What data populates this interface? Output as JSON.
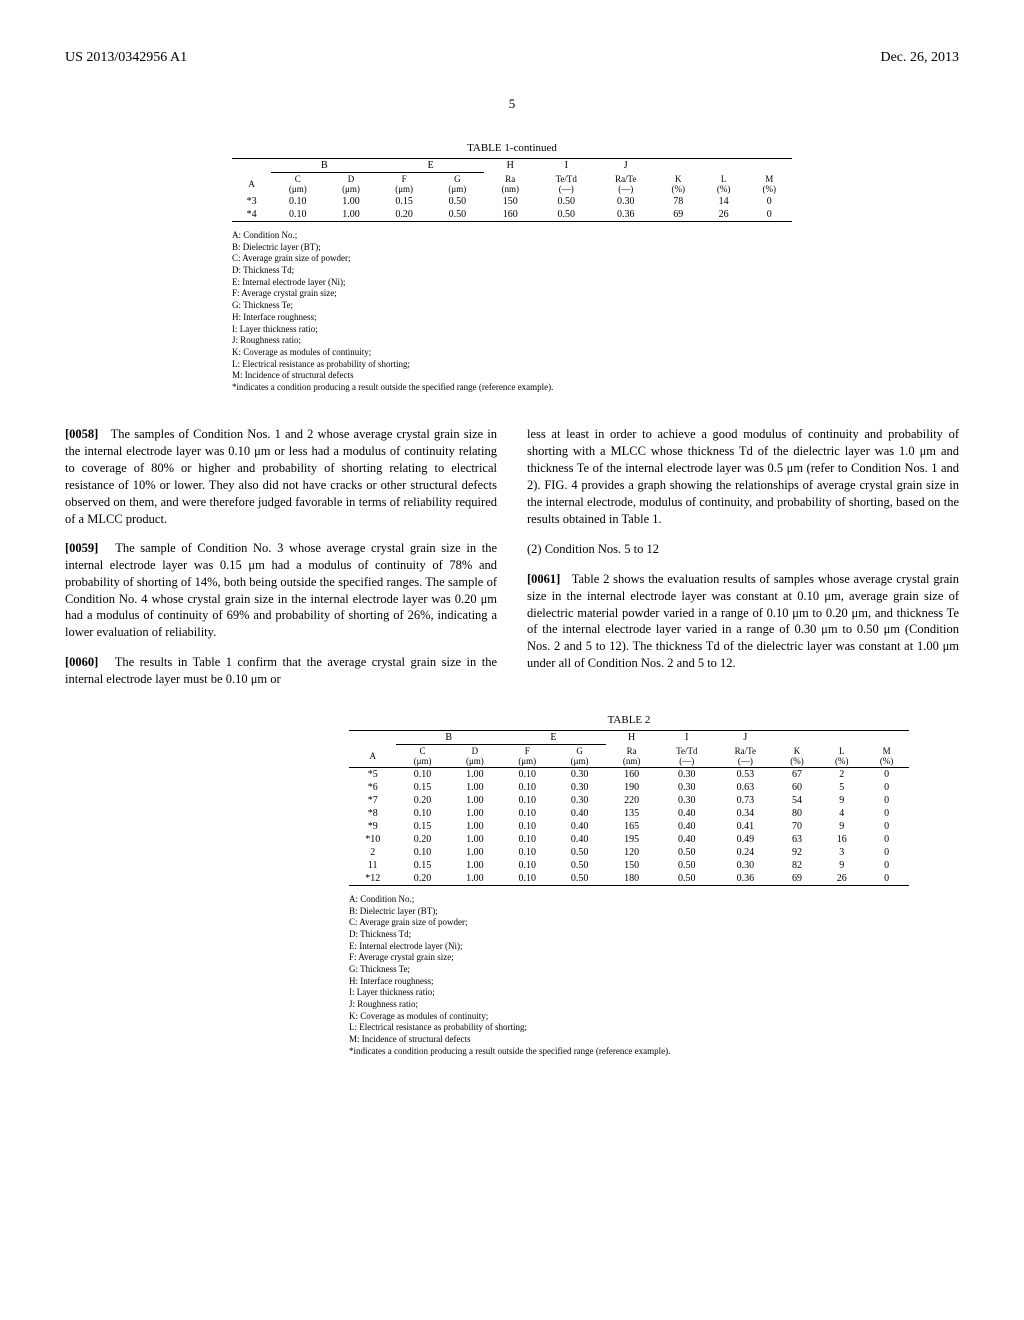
{
  "header": {
    "left": "US 2013/0342956 A1",
    "right": "Dec. 26, 2013"
  },
  "page_number": "5",
  "table1": {
    "title": "TABLE 1-continued",
    "group_labels": [
      "B",
      "E",
      "H",
      "I",
      "J"
    ],
    "cols": [
      "A",
      "C\n(μm)",
      "D\n(μm)",
      "F\n(μm)",
      "G\n(μm)",
      "Ra\n(nm)",
      "Te/Td\n(—)",
      "Ra/Te\n(—)",
      "K\n(%)",
      "L\n(%)",
      "M\n(%)"
    ],
    "rows": [
      [
        "*3",
        "0.10",
        "1.00",
        "0.15",
        "0.50",
        "150",
        "0.50",
        "0.30",
        "78",
        "14",
        "0"
      ],
      [
        "*4",
        "0.10",
        "1.00",
        "0.20",
        "0.50",
        "160",
        "0.50",
        "0.36",
        "69",
        "26",
        "0"
      ]
    ]
  },
  "legend": [
    "A: Condition No.;",
    "B: Dielectric layer (BT);",
    "C: Average grain size of powder;",
    "D: Thickness Td;",
    "E: Internal electrode layer (Ni);",
    "F: Average crystal grain size;",
    "G: Thickness Te;",
    "H: Interface roughness;",
    "I: Layer thickness ratio;",
    "J: Roughness ratio;",
    "K: Coverage as modules of continuity;",
    "L: Electrical resistance as probability of shorting;",
    "M: Incidence of structural defects",
    "*indicates a condition producing a result outside the specified range (reference example)."
  ],
  "paras": {
    "p0058_num": "[0058]",
    "p0058": "The samples of Condition Nos. 1 and 2 whose average crystal grain size in the internal electrode layer was 0.10 μm or less had a modulus of continuity relating to coverage of 80% or higher and probability of shorting relating to electrical resistance of 10% or lower. They also did not have cracks or other structural defects observed on them, and were therefore judged favorable in terms of reliability required of a MLCC product.",
    "p0059_num": "[0059]",
    "p0059": "The sample of Condition No. 3 whose average crystal grain size in the internal electrode layer was 0.15 μm had a modulus of continuity of 78% and probability of shorting of 14%, both being outside the specified ranges. The sample of Condition No. 4 whose crystal grain size in the internal electrode layer was 0.20 μm had a modulus of continuity of 69% and probability of shorting of 26%, indicating a lower evaluation of reliability.",
    "p0060_num": "[0060]",
    "p0060": "The results in Table 1 confirm that the average crystal grain size in the internal electrode layer must be 0.10 μm or",
    "p0060_cont": "less at least in order to achieve a good modulus of continuity and probability of shorting with a MLCC whose thickness Td of the dielectric layer was 1.0 μm and thickness Te of the internal electrode layer was 0.5 μm (refer to Condition Nos. 1 and 2). FIG. 4 provides a graph showing the relationships of average crystal grain size in the internal electrode, modulus of continuity, and probability of shorting, based on the results obtained in Table 1.",
    "subhead": "(2) Condition Nos. 5 to 12",
    "p0061_num": "[0061]",
    "p0061": "Table 2 shows the evaluation results of samples whose average crystal grain size in the internal electrode layer was constant at 0.10 μm, average grain size of dielectric material powder varied in a range of 0.10 μm to 0.20 μm, and thickness Te of the internal electrode layer varied in a range of 0.30 μm to 0.50 μm (Condition Nos. 2 and 5 to 12). The thickness Td of the dielectric layer was constant at 1.00 μm under all of Condition Nos. 2 and 5 to 12."
  },
  "table2": {
    "title": "TABLE 2",
    "rows": [
      [
        "*5",
        "0.10",
        "1.00",
        "0.10",
        "0.30",
        "160",
        "0.30",
        "0.53",
        "67",
        "2",
        "0"
      ],
      [
        "*6",
        "0.15",
        "1.00",
        "0.10",
        "0.30",
        "190",
        "0.30",
        "0.63",
        "60",
        "5",
        "0"
      ],
      [
        "*7",
        "0.20",
        "1.00",
        "0.10",
        "0.30",
        "220",
        "0.30",
        "0.73",
        "54",
        "9",
        "0"
      ],
      [
        "*8",
        "0.10",
        "1.00",
        "0.10",
        "0.40",
        "135",
        "0.40",
        "0.34",
        "80",
        "4",
        "0"
      ],
      [
        "*9",
        "0.15",
        "1.00",
        "0.10",
        "0.40",
        "165",
        "0.40",
        "0.41",
        "70",
        "9",
        "0"
      ],
      [
        "*10",
        "0.20",
        "1.00",
        "0.10",
        "0.40",
        "195",
        "0.40",
        "0.49",
        "63",
        "16",
        "0"
      ],
      [
        "2",
        "0.10",
        "1.00",
        "0.10",
        "0.50",
        "120",
        "0.50",
        "0.24",
        "92",
        "3",
        "0"
      ],
      [
        "11",
        "0.15",
        "1.00",
        "0.10",
        "0.50",
        "150",
        "0.50",
        "0.30",
        "82",
        "9",
        "0"
      ],
      [
        "*12",
        "0.20",
        "1.00",
        "0.10",
        "0.50",
        "180",
        "0.50",
        "0.36",
        "69",
        "26",
        "0"
      ]
    ]
  }
}
